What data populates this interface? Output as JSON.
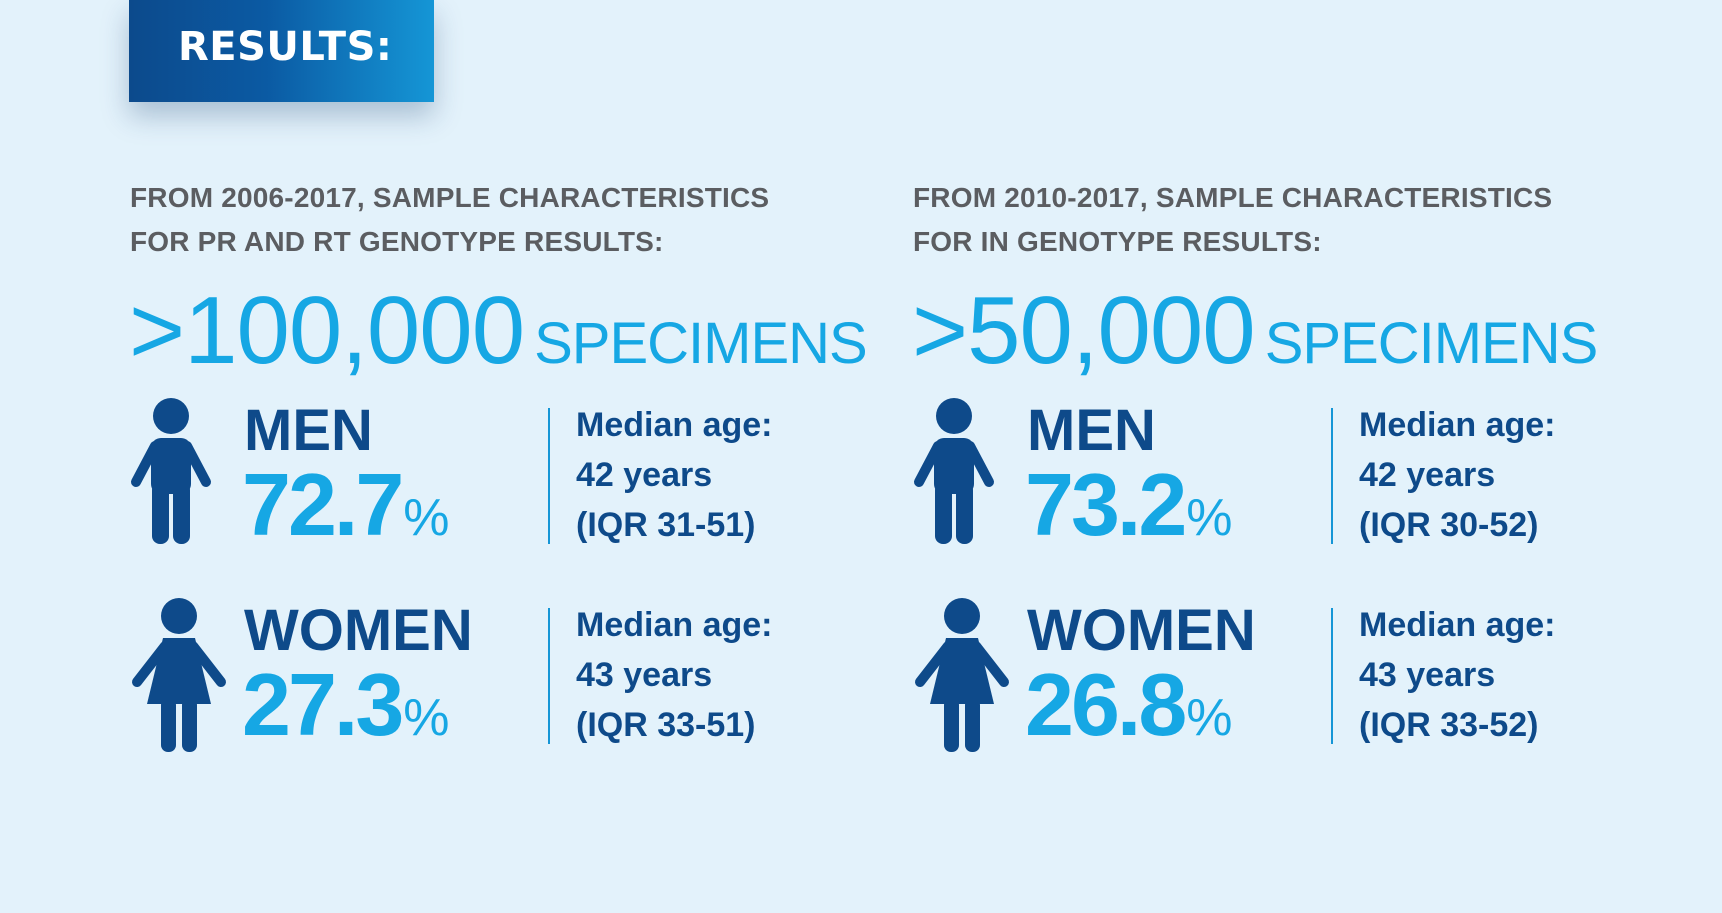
{
  "banner": {
    "title": "RESULTS:"
  },
  "colors": {
    "dark_blue": "#0e4a8a",
    "light_blue": "#16a7e4",
    "gray": "#5b5d61",
    "background": "#e3f2fb"
  },
  "left": {
    "heading": [
      "FROM 2006-2017, SAMPLE CHARACTERISTICS",
      "FOR PR AND RT GENOTYPE RESULTS:"
    ],
    "count": ">100,000",
    "count_unit": "SPECIMENS",
    "men": {
      "icon": "man-icon",
      "label": "MEN",
      "percent": "72.7",
      "percent_sign": "%",
      "median_label": "Median age:",
      "median_value": "42 years",
      "iqr": "(IQR 31-51)"
    },
    "women": {
      "icon": "woman-icon",
      "label": "WOMEN",
      "percent": "27.3",
      "percent_sign": "%",
      "median_label": "Median age:",
      "median_value": "43 years",
      "iqr": "(IQR 33-51)"
    }
  },
  "right": {
    "heading": [
      "FROM 2010-2017, SAMPLE CHARACTERISTICS",
      "FOR IN GENOTYPE RESULTS:"
    ],
    "count": ">50,000",
    "count_unit": "SPECIMENS",
    "men": {
      "icon": "man-icon",
      "label": "MEN",
      "percent": "73.2",
      "percent_sign": "%",
      "median_label": "Median age:",
      "median_value": "42 years",
      "iqr": "(IQR 30-52)"
    },
    "women": {
      "icon": "woman-icon",
      "label": "WOMEN",
      "percent": "26.8",
      "percent_sign": "%",
      "median_label": "Median age:",
      "median_value": "43 years",
      "iqr": "(IQR 33-52)"
    }
  }
}
